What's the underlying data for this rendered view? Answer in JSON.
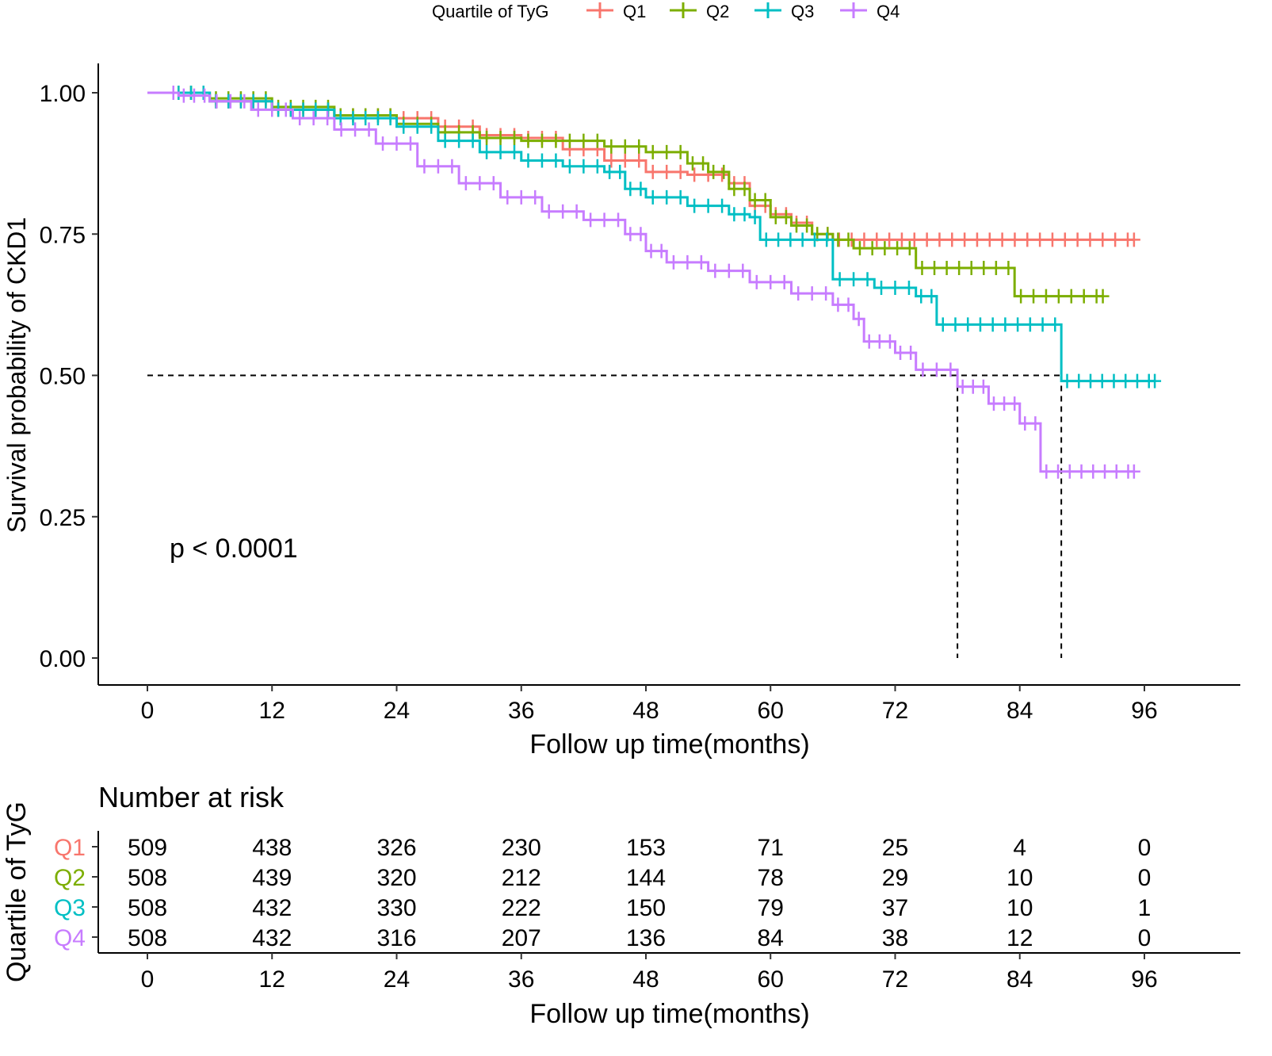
{
  "chart_data": {
    "type": "line",
    "subtype": "kaplan-meier",
    "legend_title": "Quartile of TyG",
    "legend_position": "top",
    "xlabel": "Follow up time(months)",
    "ylabel": "Survival probability of CKD1",
    "xlim": [
      0,
      102
    ],
    "ylim": [
      0,
      1.05
    ],
    "x_ticks": [
      "0",
      "12",
      "24",
      "36",
      "48",
      "60",
      "72",
      "84",
      "96"
    ],
    "x_tick_values": [
      0,
      12,
      24,
      36,
      48,
      60,
      72,
      84,
      96
    ],
    "y_ticks": [
      "0.00",
      "0.25",
      "0.50",
      "0.75",
      "1.00"
    ],
    "y_tick_values": [
      0,
      0.25,
      0.5,
      0.75,
      1.0
    ],
    "annotation": "p < 0.0001",
    "median_lines": {
      "y": 0.5,
      "x": [
        78,
        88
      ]
    },
    "series": [
      {
        "name": "Q1",
        "color": "#F8766D",
        "x": [
          0,
          6,
          12,
          18,
          24,
          28,
          32,
          36,
          40,
          44,
          48,
          52,
          56,
          58,
          60,
          62,
          64,
          66,
          95
        ],
        "y": [
          1.0,
          0.985,
          0.97,
          0.96,
          0.955,
          0.94,
          0.925,
          0.92,
          0.9,
          0.88,
          0.86,
          0.855,
          0.84,
          0.8,
          0.785,
          0.77,
          0.75,
          0.74,
          0.74
        ]
      },
      {
        "name": "Q2",
        "color": "#7CAE00",
        "x": [
          0,
          6,
          12,
          18,
          24,
          28,
          32,
          36,
          40,
          44,
          48,
          52,
          54,
          56,
          58,
          60,
          62,
          64,
          66,
          68,
          74,
          83.5,
          92
        ],
        "y": [
          1.0,
          0.99,
          0.975,
          0.96,
          0.945,
          0.93,
          0.92,
          0.915,
          0.915,
          0.905,
          0.895,
          0.875,
          0.86,
          0.83,
          0.81,
          0.78,
          0.765,
          0.75,
          0.74,
          0.725,
          0.69,
          0.64,
          0.64
        ]
      },
      {
        "name": "Q3",
        "color": "#00BFC4",
        "x": [
          0,
          6,
          12,
          18,
          24,
          28,
          32,
          36,
          40,
          44,
          46,
          48,
          52,
          56,
          58,
          59,
          66,
          70,
          74,
          76,
          88,
          97
        ],
        "y": [
          1.0,
          0.985,
          0.97,
          0.955,
          0.94,
          0.915,
          0.895,
          0.88,
          0.87,
          0.86,
          0.83,
          0.815,
          0.8,
          0.785,
          0.78,
          0.74,
          0.67,
          0.655,
          0.64,
          0.59,
          0.49,
          0.49
        ]
      },
      {
        "name": "Q4",
        "color": "#C77CFF",
        "x": [
          0,
          3,
          6,
          10,
          14,
          18,
          22,
          26,
          30,
          34,
          38,
          42,
          46,
          48,
          50,
          54,
          58,
          62,
          66,
          68,
          69,
          72,
          74,
          78,
          81,
          84,
          86,
          95
        ],
        "y": [
          1.0,
          0.995,
          0.985,
          0.97,
          0.955,
          0.935,
          0.91,
          0.87,
          0.84,
          0.815,
          0.79,
          0.775,
          0.75,
          0.72,
          0.7,
          0.685,
          0.665,
          0.645,
          0.625,
          0.6,
          0.56,
          0.54,
          0.51,
          0.48,
          0.45,
          0.415,
          0.33,
          0.33
        ]
      }
    ]
  },
  "risk_table": {
    "title": "Number at risk",
    "ylabel": "Quartile of TyG",
    "xlabel": "Follow up time(months)",
    "times": [
      "0",
      "12",
      "24",
      "36",
      "48",
      "60",
      "72",
      "84",
      "96"
    ],
    "rows": [
      {
        "group": "Q1",
        "color": "#F8766D",
        "values": [
          "509",
          "438",
          "326",
          "230",
          "153",
          "71",
          "25",
          "4",
          "0"
        ]
      },
      {
        "group": "Q2",
        "color": "#7CAE00",
        "values": [
          "508",
          "439",
          "320",
          "212",
          "144",
          "78",
          "29",
          "10",
          "0"
        ]
      },
      {
        "group": "Q3",
        "color": "#00BFC4",
        "values": [
          "508",
          "432",
          "330",
          "222",
          "150",
          "79",
          "37",
          "10",
          "1"
        ]
      },
      {
        "group": "Q4",
        "color": "#C77CFF",
        "values": [
          "508",
          "432",
          "316",
          "207",
          "136",
          "84",
          "38",
          "12",
          "0"
        ]
      }
    ]
  }
}
